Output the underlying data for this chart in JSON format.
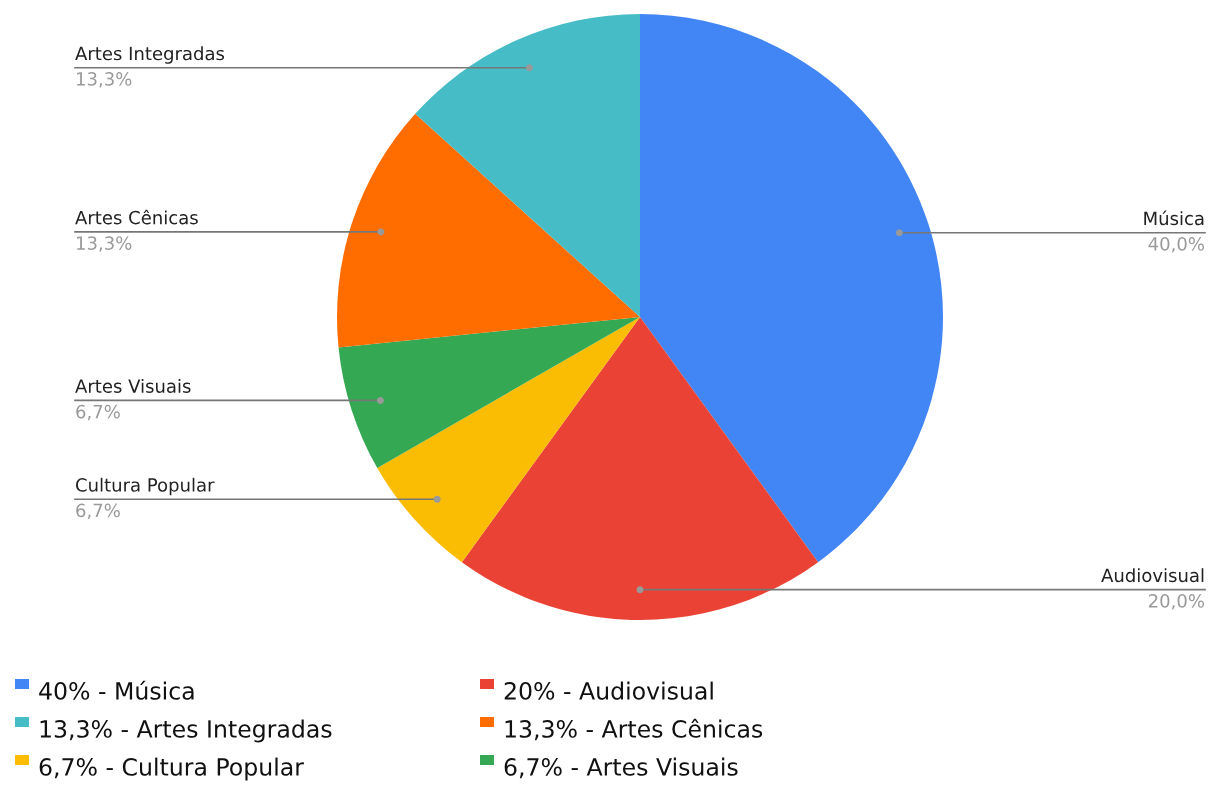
{
  "chart_data": {
    "type": "pie",
    "categories": [
      "Música",
      "Audiovisual",
      "Cultura Popular",
      "Artes Visuais",
      "Artes Cênicas",
      "Artes Integradas"
    ],
    "values": [
      40.0,
      20.0,
      6.7,
      6.7,
      13.3,
      13.3
    ],
    "value_labels": [
      "40,0%",
      "20,0%",
      "6,7%",
      "6,7%",
      "13,3%",
      "13,3%"
    ],
    "colors": [
      "#4285f4",
      "#ea4335",
      "#fbbc04",
      "#34a853",
      "#ff6d01",
      "#46bdc6"
    ],
    "annotations": [
      "40% - Música",
      "20% - Audiovisual",
      "13,3% - Artes Integradas",
      "13,3% - Artes Cênicas",
      "6,7% - Cultura Popular",
      "6,7% - Artes Visuais"
    ]
  }
}
